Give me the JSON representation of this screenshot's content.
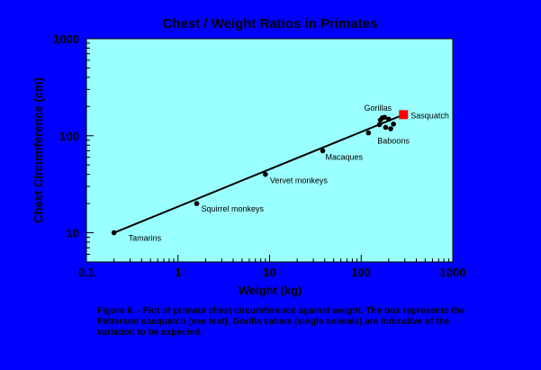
{
  "chart_data": {
    "type": "scatter",
    "title": "Chest / Weight Ratios in Primates",
    "xlabel": "Weight (kg)",
    "ylabel": "Chest Circumference (cm)",
    "x_scale": "log",
    "y_scale": "log",
    "xlim": [
      0.1,
      1000
    ],
    "ylim": [
      5,
      1000
    ],
    "x_ticks": [
      {
        "value": 0.1,
        "label": "0.1"
      },
      {
        "value": 1,
        "label": "1"
      },
      {
        "value": 10,
        "label": "10"
      },
      {
        "value": 100,
        "label": "100"
      },
      {
        "value": 1000,
        "label": "1000"
      }
    ],
    "y_ticks": [
      {
        "value": 10,
        "label": "10"
      },
      {
        "value": 100,
        "label": "100"
      },
      {
        "value": 1000,
        "label": "1000"
      }
    ],
    "grid": false,
    "legend": "none",
    "plot_bg": "#99FFFF",
    "page_bg": "#0000FF",
    "point_color": "#000000",
    "highlight_color": "#FF0000",
    "points": [
      {
        "x": 0.2,
        "y": 10,
        "label": "Tamarins"
      },
      {
        "x": 1.6,
        "y": 20,
        "label": "Squirrel monkeys"
      },
      {
        "x": 9,
        "y": 40,
        "label": "Vervet monkeys"
      },
      {
        "x": 38,
        "y": 70,
        "label": "Macaques"
      },
      {
        "x": 120,
        "y": 107,
        "label": "Baboons"
      },
      {
        "x": 158,
        "y": 130,
        "label": ""
      },
      {
        "x": 162,
        "y": 145,
        "label": ""
      },
      {
        "x": 170,
        "y": 153,
        "label": "Gorillas"
      },
      {
        "x": 180,
        "y": 155,
        "label": ""
      },
      {
        "x": 185,
        "y": 122,
        "label": ""
      },
      {
        "x": 200,
        "y": 148,
        "label": ""
      },
      {
        "x": 210,
        "y": 118,
        "label": ""
      },
      {
        "x": 225,
        "y": 132,
        "label": ""
      }
    ],
    "highlight": {
      "x": 290,
      "y": 165,
      "label": "Sasquatch"
    },
    "trendline": [
      {
        "x": 0.2,
        "y": 10
      },
      {
        "x": 290,
        "y": 165
      }
    ]
  },
  "caption": "Figure 6. - Plot of primate chest circumference against weight. The box represents the Patterson sasquatch (see text). Gorilla values (single animals) are indicative of the variation to be expected."
}
